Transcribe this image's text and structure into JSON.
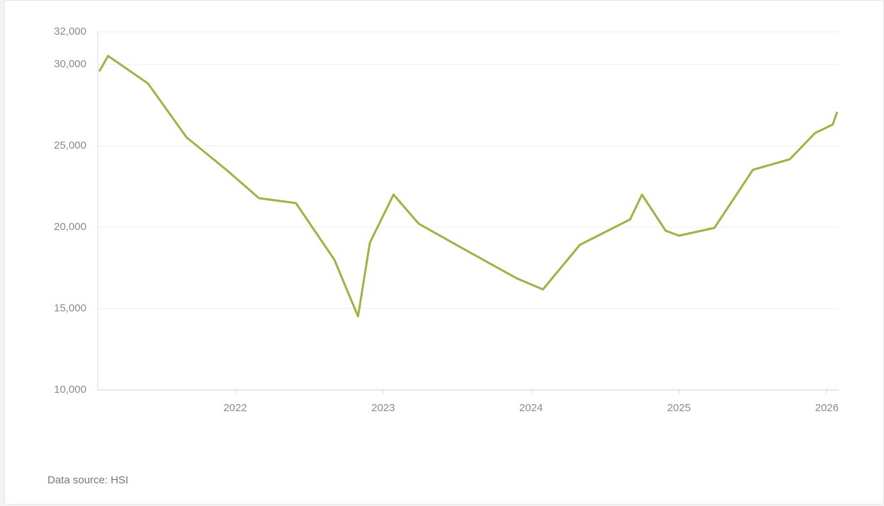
{
  "chart_data": {
    "type": "line",
    "x": [
      2021.08,
      2021.14,
      2021.41,
      2021.67,
      2021.94,
      2022.16,
      2022.41,
      2022.67,
      2022.83,
      2022.91,
      2023.07,
      2023.24,
      2023.52,
      2023.9,
      2024.08,
      2024.33,
      2024.67,
      2024.75,
      2024.91,
      2025.0,
      2025.24,
      2025.5,
      2025.75,
      2025.92,
      2026.04,
      2026.07
    ],
    "series": [
      {
        "name": "HSI",
        "color": "#9bb545",
        "values": [
          29565,
          30522,
          28826,
          25522,
          23522,
          21783,
          21478,
          18000,
          14522,
          19043,
          22000,
          20217,
          18783,
          16870,
          16174,
          18913,
          20478,
          22000,
          19783,
          19478,
          19957,
          23522,
          24174,
          25783,
          26304,
          27087
        ]
      }
    ],
    "xlim": [
      2021.07,
      2026.08
    ],
    "xticks": [
      2022,
      2023,
      2024,
      2025,
      2026
    ],
    "ylim": [
      10000,
      32000
    ],
    "yticks": [
      {
        "value": 10000,
        "label": "10,000"
      },
      {
        "value": 15000,
        "label": "15,000"
      },
      {
        "value": 20000,
        "label": "20,000"
      },
      {
        "value": 25000,
        "label": "25,000"
      },
      {
        "value": 30000,
        "label": "30,000"
      },
      {
        "value": 32000,
        "label": "32,000"
      }
    ],
    "grid": true,
    "source": "Data source: HSI"
  }
}
